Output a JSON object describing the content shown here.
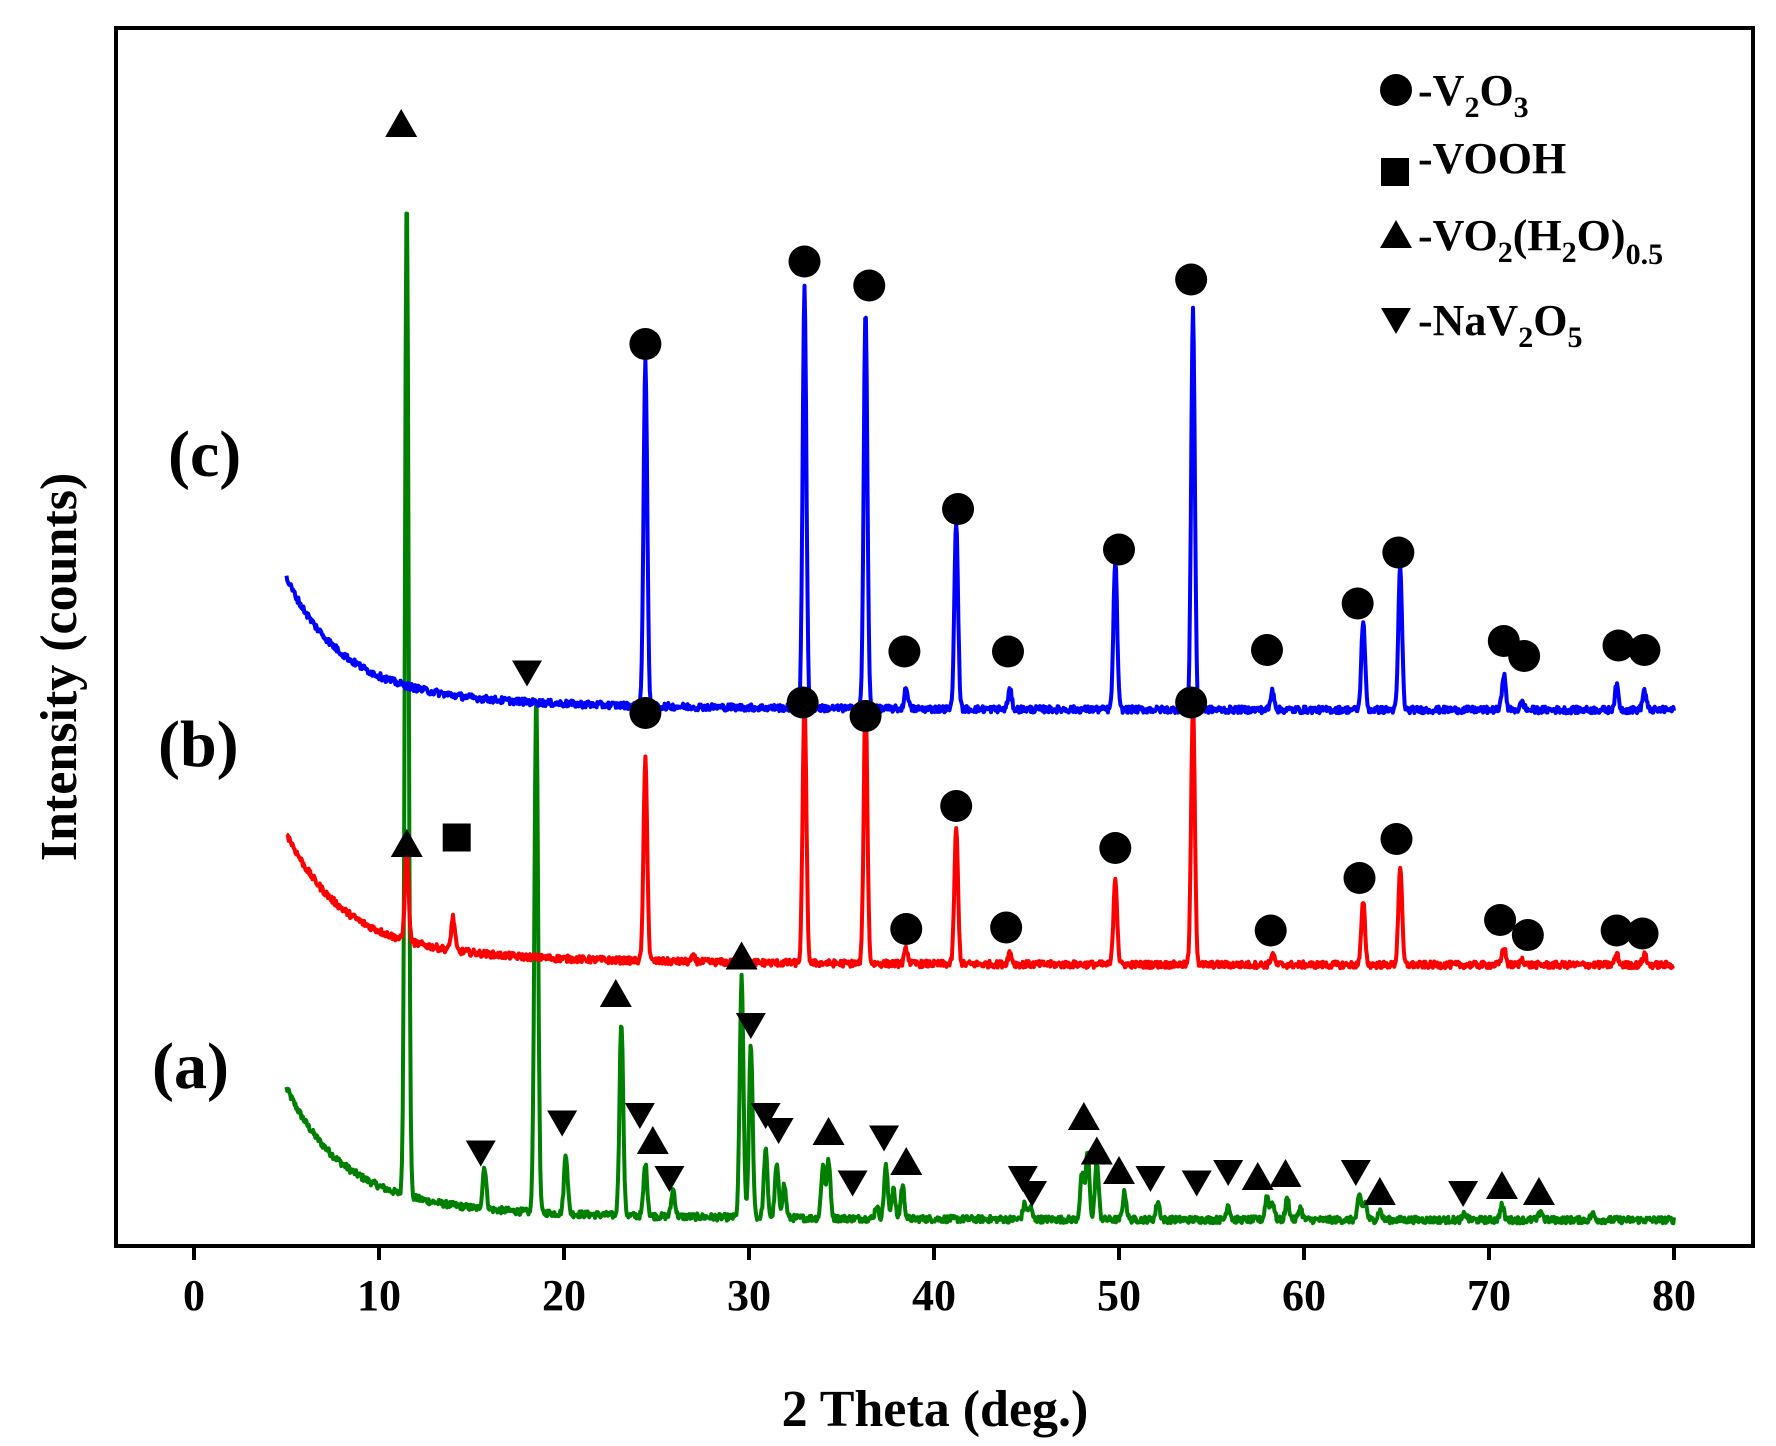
{
  "chart_data": {
    "type": "line",
    "title": "",
    "xlabel": "2 Theta (deg.)",
    "ylabel": "Intensity (counts)",
    "xlim": [
      -5,
      85
    ],
    "xticks": [
      0,
      10,
      20,
      30,
      40,
      50,
      60,
      70,
      80
    ],
    "yticks_shown": false,
    "colors": {
      "a": "#008000",
      "b": "#ff0000",
      "c": "#0000ff",
      "axis": "#000000",
      "marker": "#000000"
    },
    "legend": {
      "placement": "top-right",
      "items": [
        {
          "marker": "circle",
          "prefix": "-V",
          "sub1": "2",
          "mid": "O",
          "sub2": "3",
          "suffix": "",
          "sub3": ""
        },
        {
          "marker": "square",
          "prefix": "-VOOH",
          "sub1": "",
          "mid": "",
          "sub2": "",
          "suffix": "",
          "sub3": ""
        },
        {
          "marker": "triangle-up",
          "prefix": "-VO",
          "sub1": "2",
          "mid": "(H",
          "sub2": "2",
          "suffix": "O)",
          "sub3": "0.5"
        },
        {
          "marker": "triangle-down",
          "prefix": "-NaV",
          "sub1": "2",
          "mid": "O",
          "sub2": "5",
          "suffix": "",
          "sub3": ""
        }
      ]
    },
    "series": [
      {
        "id": "a",
        "name": "(a)",
        "baseline": 0,
        "bg_amp": 0.75,
        "start": 5,
        "end": 80,
        "peaks": [
          [
            11.5,
            6.7
          ],
          [
            15.7,
            0.28
          ],
          [
            18.5,
            3.45
          ],
          [
            20.1,
            0.4
          ],
          [
            23.1,
            1.3
          ],
          [
            24.4,
            0.35
          ],
          [
            25.9,
            0.18
          ],
          [
            29.6,
            1.6
          ],
          [
            30.1,
            1.15
          ],
          [
            30.9,
            0.45
          ],
          [
            31.5,
            0.35
          ],
          [
            31.9,
            0.22
          ],
          [
            34.0,
            0.35
          ],
          [
            34.3,
            0.38
          ],
          [
            36.9,
            0.08
          ],
          [
            37.4,
            0.35
          ],
          [
            37.8,
            0.2
          ],
          [
            38.3,
            0.22
          ],
          [
            44.9,
            0.1
          ],
          [
            45.2,
            0.08
          ],
          [
            48.0,
            0.3
          ],
          [
            48.3,
            0.45
          ],
          [
            48.8,
            0.38
          ],
          [
            50.3,
            0.18
          ],
          [
            52.1,
            0.12
          ],
          [
            55.9,
            0.1
          ],
          [
            58.0,
            0.16
          ],
          [
            58.3,
            0.12
          ],
          [
            59.1,
            0.14
          ],
          [
            59.8,
            0.08
          ],
          [
            63.0,
            0.16
          ],
          [
            63.3,
            0.12
          ],
          [
            64.1,
            0.06
          ],
          [
            68.7,
            0.04
          ],
          [
            70.7,
            0.1
          ],
          [
            72.8,
            0.06
          ],
          [
            75.6,
            0.04
          ]
        ]
      },
      {
        "id": "b",
        "name": "(b)",
        "baseline": 1.7,
        "bg_amp": 0.75,
        "start": 5,
        "end": 80,
        "peaks": [
          [
            11.5,
            0.6
          ],
          [
            14.0,
            0.22
          ],
          [
            24.4,
            1.35
          ],
          [
            27.0,
            0.03
          ],
          [
            29.5,
            0.05
          ],
          [
            33.0,
            1.75
          ],
          [
            36.3,
            1.75
          ],
          [
            38.5,
            0.1
          ],
          [
            41.2,
            0.9
          ],
          [
            44.1,
            0.08
          ],
          [
            49.8,
            0.58
          ],
          [
            54.0,
            1.75
          ],
          [
            58.3,
            0.07
          ],
          [
            63.2,
            0.42
          ],
          [
            65.2,
            0.66
          ],
          [
            70.8,
            0.12
          ],
          [
            71.8,
            0.04
          ],
          [
            76.9,
            0.07
          ],
          [
            78.4,
            0.07
          ]
        ]
      },
      {
        "id": "c",
        "name": "(c)",
        "baseline": 3.4,
        "bg_amp": 0.75,
        "start": 5,
        "end": 80,
        "peaks": [
          [
            24.4,
            2.3
          ],
          [
            33.0,
            2.82
          ],
          [
            36.3,
            2.65
          ],
          [
            38.5,
            0.14
          ],
          [
            41.2,
            1.25
          ],
          [
            44.1,
            0.13
          ],
          [
            49.8,
            1.0
          ],
          [
            54.0,
            2.67
          ],
          [
            58.3,
            0.13
          ],
          [
            63.2,
            0.6
          ],
          [
            65.2,
            0.96
          ],
          [
            70.8,
            0.24
          ],
          [
            71.8,
            0.05
          ],
          [
            76.9,
            0.16
          ],
          [
            78.4,
            0.13
          ]
        ]
      }
    ],
    "annotations": {
      "a": [
        [
          "triangle-up",
          11.2,
          7.3
        ],
        [
          "triangle-down",
          15.5,
          0.45
        ],
        [
          "triangle-down",
          18.0,
          3.65
        ],
        [
          "triangle-down",
          19.9,
          0.65
        ],
        [
          "triangle-up",
          22.8,
          1.5
        ],
        [
          "triangle-down",
          24.1,
          0.7
        ],
        [
          "triangle-up",
          24.8,
          0.52
        ],
        [
          "triangle-down",
          25.7,
          0.28
        ],
        [
          "triangle-up",
          29.6,
          1.75
        ],
        [
          "triangle-down",
          30.1,
          1.3
        ],
        [
          "triangle-down",
          30.9,
          0.7
        ],
        [
          "triangle-down",
          31.6,
          0.6
        ],
        [
          "triangle-up",
          34.3,
          0.58
        ],
        [
          "triangle-down",
          35.6,
          0.25
        ],
        [
          "triangle-down",
          37.3,
          0.55
        ],
        [
          "triangle-up",
          38.5,
          0.38
        ],
        [
          "triangle-down",
          44.8,
          0.28
        ],
        [
          "triangle-down",
          45.3,
          0.18
        ],
        [
          "triangle-up",
          48.1,
          0.68
        ],
        [
          "triangle-up",
          48.8,
          0.45
        ],
        [
          "triangle-up",
          50.0,
          0.32
        ],
        [
          "triangle-down",
          51.7,
          0.28
        ],
        [
          "triangle-down",
          54.2,
          0.25
        ],
        [
          "triangle-down",
          55.9,
          0.32
        ],
        [
          "triangle-up",
          57.5,
          0.28
        ],
        [
          "triangle-up",
          59.0,
          0.3
        ],
        [
          "triangle-down",
          62.8,
          0.32
        ],
        [
          "triangle-up",
          64.1,
          0.18
        ],
        [
          "triangle-down",
          68.6,
          0.18
        ],
        [
          "triangle-up",
          70.7,
          0.22
        ],
        [
          "triangle-up",
          72.7,
          0.18
        ]
      ],
      "b": [
        [
          "triangle-up",
          11.5,
          2.5
        ],
        [
          "square",
          14.2,
          2.55
        ],
        [
          "circle",
          24.4,
          3.38
        ],
        [
          "circle",
          32.9,
          3.45
        ],
        [
          "circle",
          36.3,
          3.36
        ],
        [
          "circle",
          38.5,
          1.94
        ],
        [
          "circle",
          41.2,
          2.76
        ],
        [
          "circle",
          43.9,
          1.95
        ],
        [
          "circle",
          49.8,
          2.48
        ],
        [
          "circle",
          53.9,
          3.45
        ],
        [
          "circle",
          58.2,
          1.93
        ],
        [
          "circle",
          63.0,
          2.28
        ],
        [
          "circle",
          65.0,
          2.54
        ],
        [
          "circle",
          70.6,
          2.0
        ],
        [
          "circle",
          72.1,
          1.9
        ],
        [
          "circle",
          76.9,
          1.93
        ],
        [
          "circle",
          78.3,
          1.91
        ]
      ],
      "c": [
        [
          "circle",
          24.4,
          5.84
        ],
        [
          "circle",
          33.0,
          6.39
        ],
        [
          "circle",
          36.5,
          6.23
        ],
        [
          "circle",
          38.4,
          3.79
        ],
        [
          "circle",
          41.3,
          4.74
        ],
        [
          "circle",
          44.0,
          3.79
        ],
        [
          "circle",
          50.0,
          4.47
        ],
        [
          "circle",
          53.9,
          6.27
        ],
        [
          "circle",
          58.0,
          3.8
        ],
        [
          "circle",
          62.9,
          4.11
        ],
        [
          "circle",
          65.1,
          4.45
        ],
        [
          "circle",
          70.8,
          3.86
        ],
        [
          "circle",
          71.9,
          3.76
        ],
        [
          "circle",
          77.0,
          3.83
        ],
        [
          "circle",
          78.4,
          3.8
        ]
      ]
    }
  }
}
